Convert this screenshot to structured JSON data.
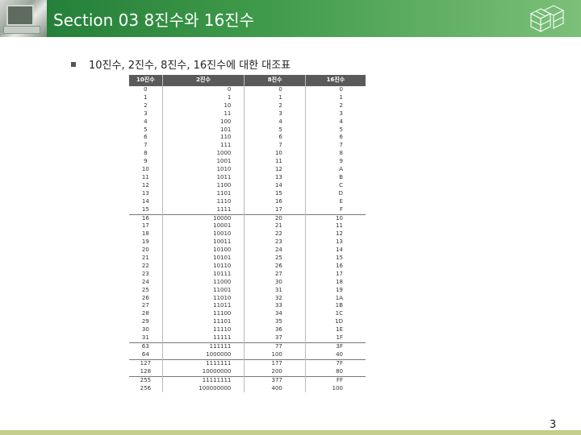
{
  "header": {
    "title": "Section 03 8진수와 16진수"
  },
  "bullet": {
    "text": "10진수, 2진수, 8진수, 16진수에 대한 대조표"
  },
  "table": {
    "columns": [
      "10진수",
      "2진수",
      "8진수",
      "16진수"
    ],
    "groups": [
      [
        [
          "0",
          "0",
          "0",
          "0"
        ],
        [
          "1",
          "1",
          "1",
          "1"
        ],
        [
          "2",
          "10",
          "2",
          "2"
        ],
        [
          "3",
          "11",
          "3",
          "3"
        ],
        [
          "4",
          "100",
          "4",
          "4"
        ],
        [
          "5",
          "101",
          "5",
          "5"
        ],
        [
          "6",
          "110",
          "6",
          "6"
        ],
        [
          "7",
          "111",
          "7",
          "7"
        ],
        [
          "8",
          "1000",
          "10",
          "8"
        ],
        [
          "9",
          "1001",
          "11",
          "9"
        ],
        [
          "10",
          "1010",
          "12",
          "A"
        ],
        [
          "11",
          "1011",
          "13",
          "B"
        ],
        [
          "12",
          "1100",
          "14",
          "C"
        ],
        [
          "13",
          "1101",
          "15",
          "D"
        ],
        [
          "14",
          "1110",
          "16",
          "E"
        ],
        [
          "15",
          "1111",
          "17",
          "F"
        ]
      ],
      [
        [
          "16",
          "10000",
          "20",
          "10"
        ],
        [
          "17",
          "10001",
          "21",
          "11"
        ],
        [
          "18",
          "10010",
          "22",
          "12"
        ],
        [
          "19",
          "10011",
          "23",
          "13"
        ],
        [
          "20",
          "10100",
          "24",
          "14"
        ],
        [
          "21",
          "10101",
          "25",
          "15"
        ],
        [
          "22",
          "10110",
          "26",
          "16"
        ],
        [
          "23",
          "10111",
          "27",
          "17"
        ],
        [
          "24",
          "11000",
          "30",
          "18"
        ],
        [
          "25",
          "11001",
          "31",
          "19"
        ],
        [
          "26",
          "11010",
          "32",
          "1A"
        ],
        [
          "27",
          "11011",
          "33",
          "1B"
        ],
        [
          "28",
          "11100",
          "34",
          "1C"
        ],
        [
          "29",
          "11101",
          "35",
          "1D"
        ],
        [
          "30",
          "11110",
          "36",
          "1E"
        ],
        [
          "31",
          "11111",
          "37",
          "1F"
        ]
      ],
      [
        [
          "63",
          "111111",
          "77",
          "3F"
        ],
        [
          "64",
          "1000000",
          "100",
          "40"
        ]
      ],
      [
        [
          "127",
          "1111111",
          "177",
          "7F"
        ],
        [
          "128",
          "10000000",
          "200",
          "80"
        ]
      ],
      [
        [
          "255",
          "11111111",
          "377",
          "FF"
        ],
        [
          "256",
          "100000000",
          "400",
          "100"
        ]
      ]
    ]
  },
  "footer": {
    "page_number": "3"
  },
  "icons": {
    "header_thumbnail": "computer-photo-icon",
    "header_logo": "cube-stack-logo-icon"
  },
  "colors": {
    "header_green": "#1f7a35",
    "footer_band": "#c5cd8a"
  }
}
